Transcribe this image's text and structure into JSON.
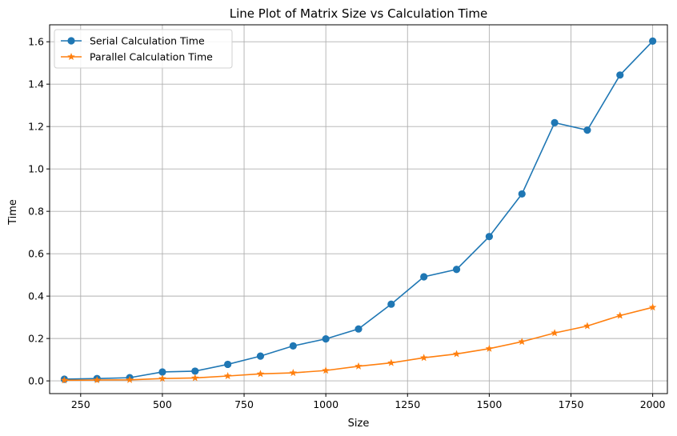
{
  "chart_data": {
    "type": "line",
    "title": "Line Plot of Matrix Size vs Calculation Time",
    "xlabel": "Size",
    "ylabel": "Time",
    "xlim": [
      155,
      2045
    ],
    "ylim": [
      -0.06,
      1.68
    ],
    "xticks": [
      250,
      500,
      750,
      1000,
      1250,
      1500,
      1750,
      2000
    ],
    "xtick_labels": [
      "250",
      "500",
      "750",
      "1000",
      "1250",
      "1500",
      "1750",
      "2000"
    ],
    "yticks": [
      0.0,
      0.2,
      0.4,
      0.6,
      0.8,
      1.0,
      1.2,
      1.4,
      1.6
    ],
    "ytick_labels": [
      "0.0",
      "0.2",
      "0.4",
      "0.6",
      "0.8",
      "1.0",
      "1.2",
      "1.4",
      "1.6"
    ],
    "grid": true,
    "legend_position": "top-left",
    "x": [
      200,
      300,
      400,
      500,
      600,
      700,
      800,
      900,
      1000,
      1100,
      1200,
      1300,
      1400,
      1500,
      1600,
      1700,
      1800,
      1900,
      2000
    ],
    "series": [
      {
        "name": "Serial Calculation Time",
        "color": "#1f77b4",
        "marker": "circle",
        "values": [
          0.008,
          0.011,
          0.015,
          0.042,
          0.046,
          0.078,
          0.117,
          0.165,
          0.198,
          0.245,
          0.362,
          0.491,
          0.526,
          0.681,
          0.882,
          1.218,
          1.183,
          1.443,
          1.603
        ]
      },
      {
        "name": "Parallel Calculation Time",
        "color": "#ff7f0e",
        "marker": "star",
        "values": [
          0.003,
          0.004,
          0.005,
          0.011,
          0.014,
          0.023,
          0.033,
          0.038,
          0.049,
          0.069,
          0.085,
          0.109,
          0.127,
          0.152,
          0.185,
          0.226,
          0.259,
          0.308,
          0.347
        ]
      }
    ]
  }
}
